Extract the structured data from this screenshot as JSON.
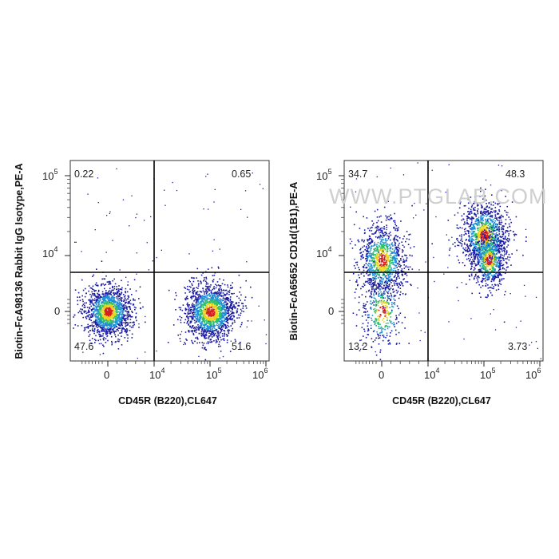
{
  "watermark": "WWW.PTGLAB.COM",
  "colors": {
    "low": "#1a1aa0",
    "mid": "#1f8fd6",
    "midhigh": "#2cbf6a",
    "high": "#e8d21d",
    "peak": "#d62020"
  },
  "chart_data": [
    {
      "type": "scatter",
      "ylabel": "Biotin-FcA98136 Rabbit IgG Isotype,PE-A",
      "xlabel": "CD45R (B220),CL647",
      "x_ticks": [
        {
          "base": "0",
          "exp": ""
        },
        {
          "base": "10",
          "exp": "4"
        },
        {
          "base": "10",
          "exp": "5"
        },
        {
          "base": "10",
          "exp": "6"
        }
      ],
      "y_ticks": [
        {
          "base": "0",
          "exp": ""
        },
        {
          "base": "10",
          "exp": "4"
        },
        {
          "base": "10",
          "exp": "5"
        }
      ],
      "quadrants": {
        "UL": "0.22",
        "UR": "0.65",
        "LL": "47.6",
        "LR": "51.6"
      },
      "gate": {
        "x": 10000,
        "y": 4000
      },
      "populations": [
        {
          "x": 0,
          "y": 0,
          "n": 1500,
          "sx": 0.13,
          "sy": 0.14
        },
        {
          "x": 100000,
          "y": 0,
          "n": 1600,
          "sx": 0.14,
          "sy": 0.16
        }
      ]
    },
    {
      "type": "scatter",
      "ylabel": "Biotin-FcA65652 CD1d(1B1),PE-A",
      "xlabel": "CD45R (B220),CL647",
      "x_ticks": [
        {
          "base": "0",
          "exp": ""
        },
        {
          "base": "10",
          "exp": "4"
        },
        {
          "base": "10",
          "exp": "5"
        },
        {
          "base": "10",
          "exp": "6"
        }
      ],
      "y_ticks": [
        {
          "base": "0",
          "exp": ""
        },
        {
          "base": "10",
          "exp": "4"
        },
        {
          "base": "10",
          "exp": "5"
        }
      ],
      "quadrants": {
        "UL": "34.7",
        "UR": "48.3",
        "LL": "13.2",
        "LR": "3.73"
      },
      "gate": {
        "x": 10000,
        "y": 4000
      },
      "populations": [
        {
          "x": 0,
          "y": 7000,
          "n": 1100,
          "sx": 0.13,
          "sy": 0.2
        },
        {
          "x": 0,
          "y": 0,
          "n": 350,
          "sx": 0.12,
          "sy": 0.2
        },
        {
          "x": 100000,
          "y": 18000,
          "n": 1200,
          "sx": 0.13,
          "sy": 0.18
        },
        {
          "x": 120000,
          "y": 7000,
          "n": 600,
          "sx": 0.09,
          "sy": 0.16
        }
      ]
    }
  ]
}
